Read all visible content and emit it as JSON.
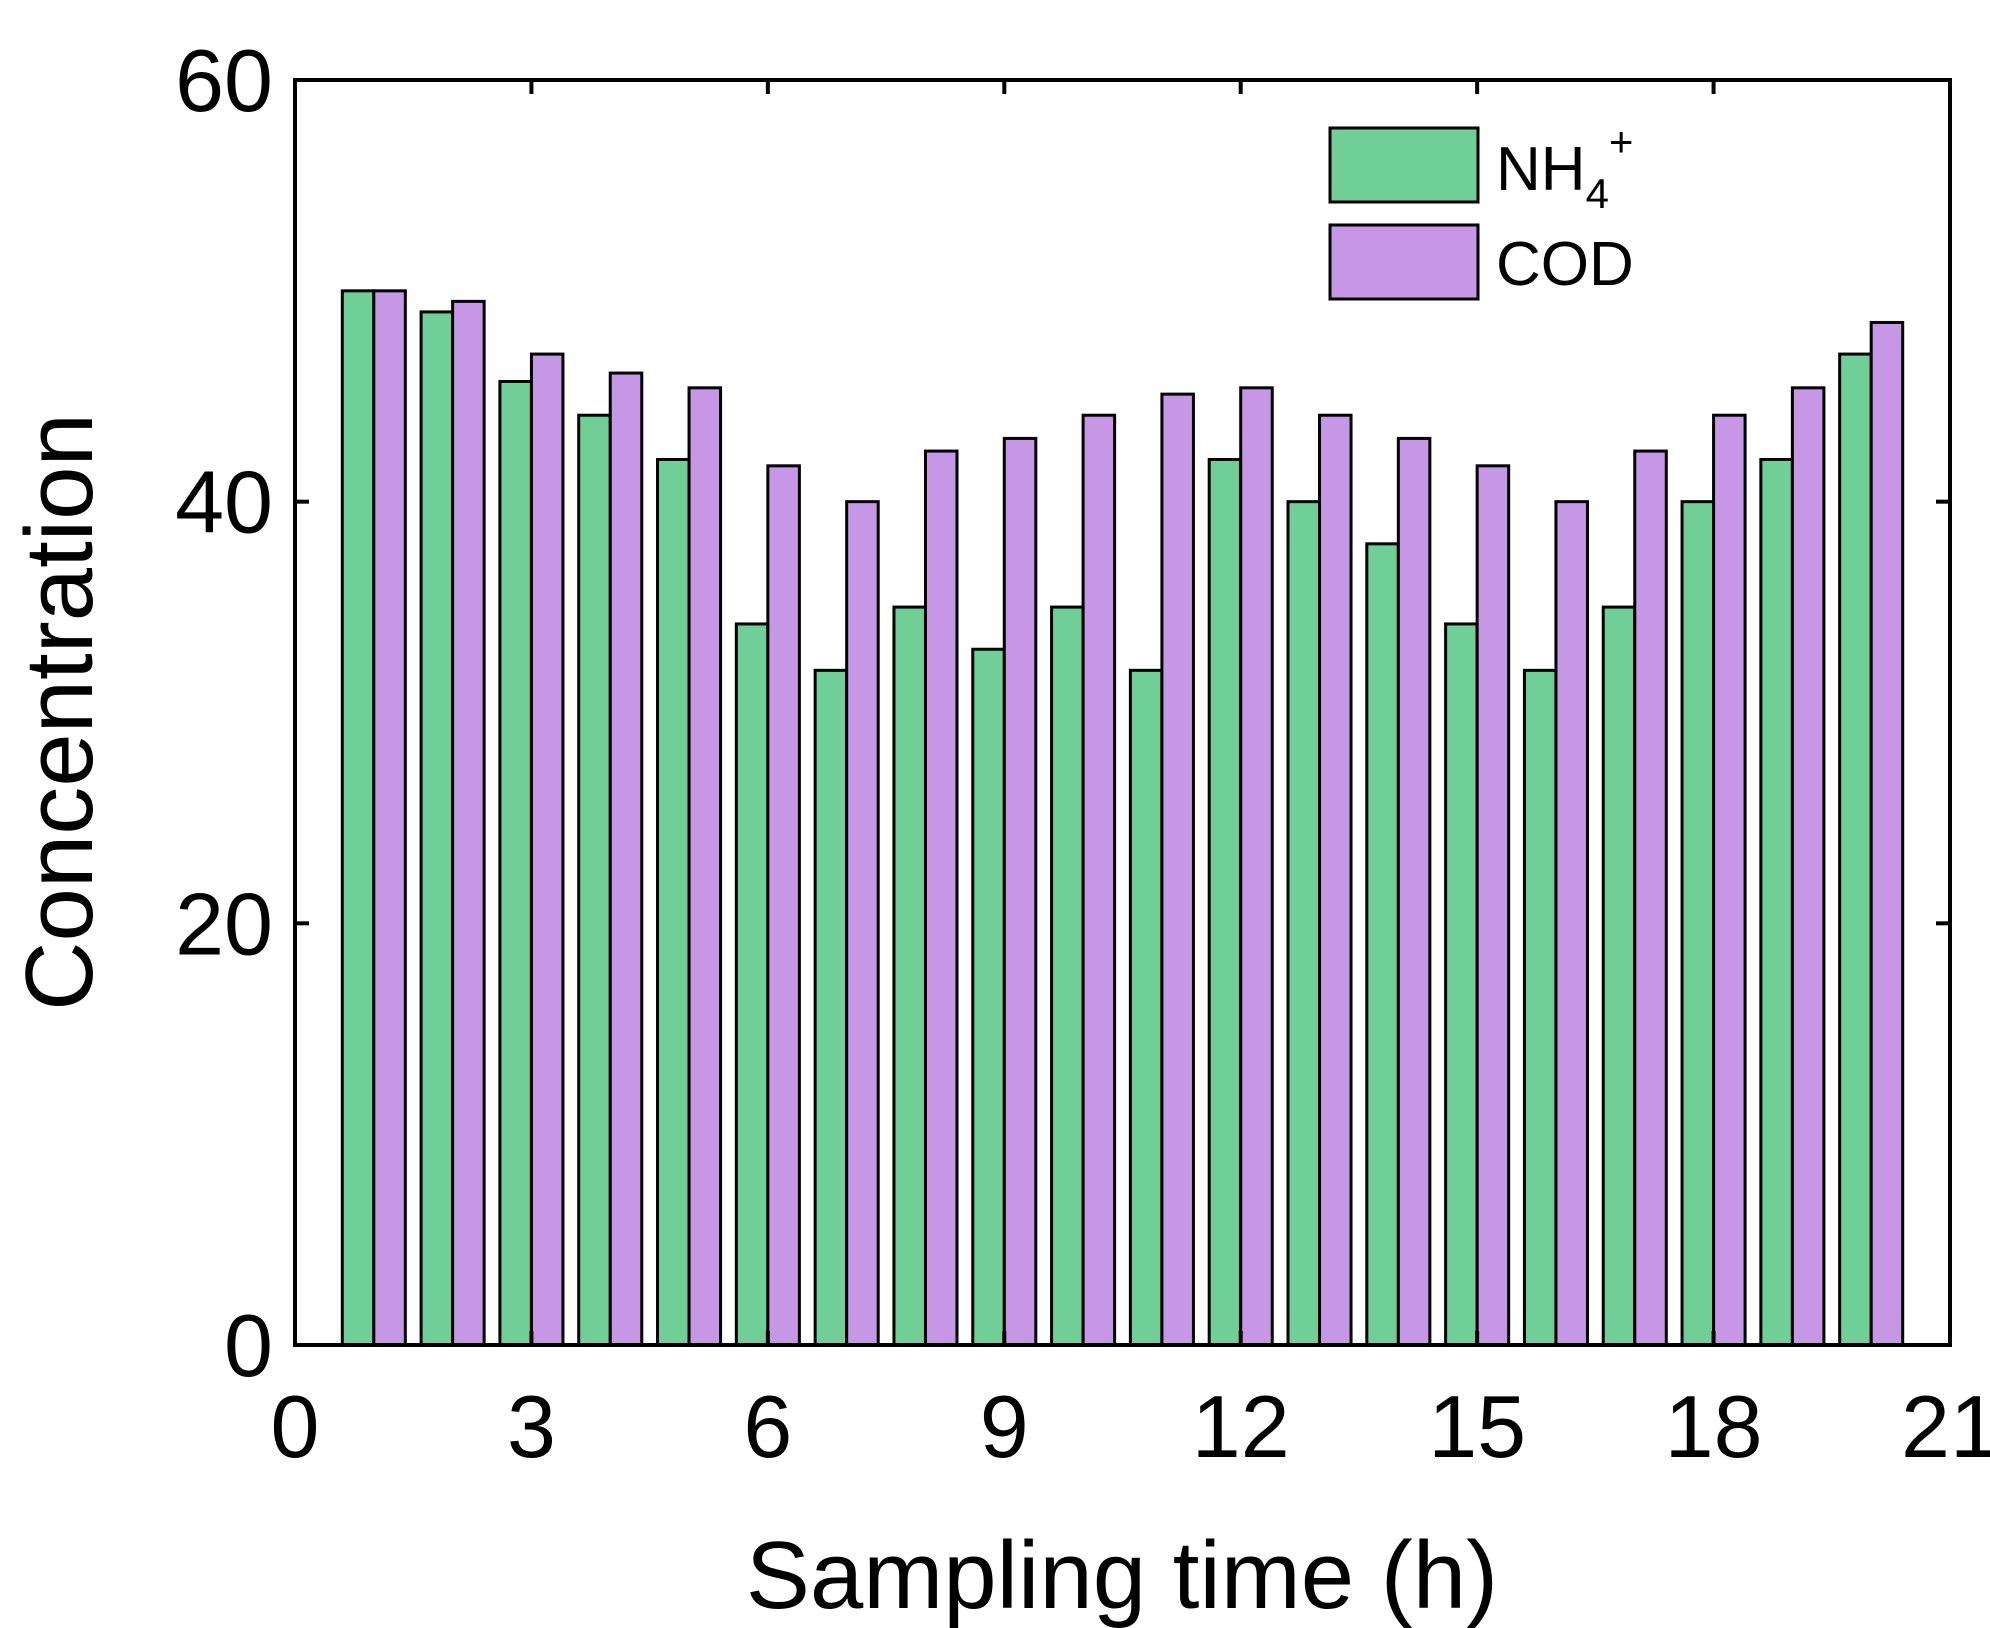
{
  "chart_data": {
    "type": "bar",
    "title": "",
    "xlabel": "Sampling time (h)",
    "ylabel": "Concentration",
    "xlim": [
      0,
      21
    ],
    "ylim": [
      0,
      60
    ],
    "xticks": [
      0,
      3,
      6,
      9,
      12,
      15,
      18,
      21
    ],
    "yticks": [
      0,
      20,
      40,
      60
    ],
    "grid": false,
    "legend_position": "top-right",
    "x": [
      1,
      2,
      3,
      4,
      5,
      6,
      7,
      8,
      9,
      10,
      11,
      12,
      13,
      14,
      15,
      16,
      17,
      18,
      19,
      20
    ],
    "series": [
      {
        "name": "NH4+",
        "legend_base": "NH",
        "legend_sub": "4",
        "legend_sup": "+",
        "color": "#6fcf97",
        "values": [
          50,
          49,
          45.7,
          44.1,
          42,
          34.2,
          32,
          35,
          33,
          35,
          32,
          42,
          40,
          38,
          34.2,
          32,
          35,
          40,
          42,
          47
        ]
      },
      {
        "name": "COD",
        "legend_label": "COD",
        "color": "#c597e5",
        "values": [
          50,
          49.5,
          47,
          46.1,
          45.4,
          41.7,
          40,
          42.4,
          43,
          44.1,
          45.1,
          45.4,
          44.1,
          43,
          41.7,
          40,
          42.4,
          44.1,
          45.4,
          48.5
        ]
      }
    ]
  }
}
